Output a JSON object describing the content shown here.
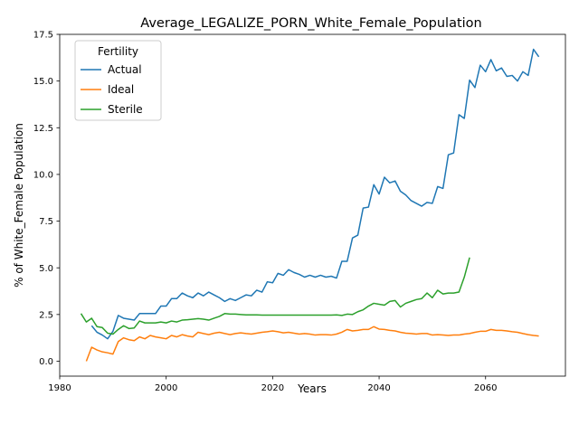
{
  "chart_data": {
    "type": "line",
    "title": "Average_LEGALIZE_PORN_White_Female_Population",
    "xlabel": "Years",
    "ylabel": "% of White_Female Population",
    "xlim": [
      1980,
      2075
    ],
    "ylim": [
      -0.8,
      17.5
    ],
    "xticks": [
      1980,
      2000,
      2020,
      2040,
      2060
    ],
    "yticks": [
      0.0,
      2.5,
      5.0,
      7.5,
      10.0,
      12.5,
      15.0,
      17.5
    ],
    "xtick_labels": [
      "1980",
      "2000",
      "2020",
      "2040",
      "2060"
    ],
    "ytick_labels": [
      "0.0",
      "2.5",
      "5.0",
      "7.5",
      "10.0",
      "12.5",
      "15.0",
      "17.5"
    ],
    "grid": false,
    "legend": {
      "title": "Fertility",
      "placement": "top-left"
    },
    "series": [
      {
        "name": "Actual",
        "color": "#1f77b4",
        "points": [
          [
            1986,
            1.9
          ],
          [
            1987,
            1.55
          ],
          [
            1988,
            1.4
          ],
          [
            1989,
            1.2
          ],
          [
            1990,
            1.6
          ],
          [
            1991,
            2.45
          ],
          [
            1992,
            2.3
          ],
          [
            1993,
            2.25
          ],
          [
            1994,
            2.2
          ],
          [
            1995,
            2.55
          ],
          [
            1996,
            2.55
          ],
          [
            1997,
            2.55
          ],
          [
            1998,
            2.55
          ],
          [
            1999,
            2.95
          ],
          [
            2000,
            2.95
          ],
          [
            2001,
            3.35
          ],
          [
            2002,
            3.35
          ],
          [
            2003,
            3.65
          ],
          [
            2004,
            3.5
          ],
          [
            2005,
            3.4
          ],
          [
            2006,
            3.65
          ],
          [
            2007,
            3.5
          ],
          [
            2008,
            3.7
          ],
          [
            2009,
            3.55
          ],
          [
            2010,
            3.4
          ],
          [
            2011,
            3.2
          ],
          [
            2012,
            3.35
          ],
          [
            2013,
            3.25
          ],
          [
            2014,
            3.4
          ],
          [
            2015,
            3.55
          ],
          [
            2016,
            3.5
          ],
          [
            2017,
            3.8
          ],
          [
            2018,
            3.7
          ],
          [
            2019,
            4.25
          ],
          [
            2020,
            4.2
          ],
          [
            2021,
            4.7
          ],
          [
            2022,
            4.6
          ],
          [
            2023,
            4.9
          ],
          [
            2024,
            4.75
          ],
          [
            2025,
            4.65
          ],
          [
            2026,
            4.5
          ],
          [
            2027,
            4.6
          ],
          [
            2028,
            4.5
          ],
          [
            2029,
            4.6
          ],
          [
            2030,
            4.5
          ],
          [
            2031,
            4.55
          ],
          [
            2032,
            4.45
          ],
          [
            2033,
            5.35
          ],
          [
            2034,
            5.35
          ],
          [
            2035,
            6.6
          ],
          [
            2036,
            6.75
          ],
          [
            2037,
            8.2
          ],
          [
            2038,
            8.25
          ],
          [
            2039,
            9.45
          ],
          [
            2040,
            8.95
          ],
          [
            2041,
            9.85
          ],
          [
            2042,
            9.55
          ],
          [
            2043,
            9.65
          ],
          [
            2044,
            9.1
          ],
          [
            2045,
            8.9
          ],
          [
            2046,
            8.6
          ],
          [
            2047,
            8.45
          ],
          [
            2048,
            8.3
          ],
          [
            2049,
            8.5
          ],
          [
            2050,
            8.45
          ],
          [
            2051,
            9.35
          ],
          [
            2052,
            9.25
          ],
          [
            2053,
            11.05
          ],
          [
            2054,
            11.15
          ],
          [
            2055,
            13.2
          ],
          [
            2056,
            13.0
          ],
          [
            2057,
            15.05
          ],
          [
            2058,
            14.65
          ],
          [
            2059,
            15.85
          ],
          [
            2060,
            15.5
          ],
          [
            2061,
            16.15
          ],
          [
            2062,
            15.55
          ],
          [
            2063,
            15.7
          ],
          [
            2064,
            15.25
          ],
          [
            2065,
            15.3
          ],
          [
            2066,
            15.0
          ],
          [
            2067,
            15.5
          ],
          [
            2068,
            15.3
          ],
          [
            2069,
            16.7
          ],
          [
            2070,
            16.3
          ]
        ]
      },
      {
        "name": "Ideal",
        "color": "#ff7f0e",
        "points": [
          [
            1985,
            0.0
          ],
          [
            1986,
            0.75
          ],
          [
            1987,
            0.6
          ],
          [
            1988,
            0.5
          ],
          [
            1989,
            0.45
          ],
          [
            1990,
            0.38
          ],
          [
            1991,
            1.05
          ],
          [
            1992,
            1.25
          ],
          [
            1993,
            1.15
          ],
          [
            1994,
            1.1
          ],
          [
            1995,
            1.3
          ],
          [
            1996,
            1.2
          ],
          [
            1997,
            1.38
          ],
          [
            1998,
            1.3
          ],
          [
            1999,
            1.25
          ],
          [
            2000,
            1.2
          ],
          [
            2001,
            1.38
          ],
          [
            2002,
            1.3
          ],
          [
            2003,
            1.42
          ],
          [
            2004,
            1.35
          ],
          [
            2005,
            1.3
          ],
          [
            2006,
            1.55
          ],
          [
            2007,
            1.48
          ],
          [
            2008,
            1.42
          ],
          [
            2009,
            1.5
          ],
          [
            2010,
            1.55
          ],
          [
            2011,
            1.48
          ],
          [
            2012,
            1.42
          ],
          [
            2013,
            1.48
          ],
          [
            2014,
            1.52
          ],
          [
            2015,
            1.48
          ],
          [
            2016,
            1.45
          ],
          [
            2017,
            1.5
          ],
          [
            2018,
            1.55
          ],
          [
            2019,
            1.58
          ],
          [
            2020,
            1.62
          ],
          [
            2021,
            1.58
          ],
          [
            2022,
            1.52
          ],
          [
            2023,
            1.55
          ],
          [
            2024,
            1.5
          ],
          [
            2025,
            1.45
          ],
          [
            2026,
            1.48
          ],
          [
            2027,
            1.45
          ],
          [
            2028,
            1.4
          ],
          [
            2029,
            1.42
          ],
          [
            2030,
            1.42
          ],
          [
            2031,
            1.4
          ],
          [
            2032,
            1.45
          ],
          [
            2033,
            1.55
          ],
          [
            2034,
            1.7
          ],
          [
            2035,
            1.62
          ],
          [
            2036,
            1.65
          ],
          [
            2037,
            1.7
          ],
          [
            2038,
            1.7
          ],
          [
            2039,
            1.85
          ],
          [
            2040,
            1.72
          ],
          [
            2041,
            1.7
          ],
          [
            2042,
            1.65
          ],
          [
            2043,
            1.62
          ],
          [
            2044,
            1.55
          ],
          [
            2045,
            1.5
          ],
          [
            2046,
            1.48
          ],
          [
            2047,
            1.45
          ],
          [
            2048,
            1.48
          ],
          [
            2049,
            1.48
          ],
          [
            2050,
            1.4
          ],
          [
            2051,
            1.42
          ],
          [
            2052,
            1.4
          ],
          [
            2053,
            1.38
          ],
          [
            2054,
            1.4
          ],
          [
            2055,
            1.4
          ],
          [
            2056,
            1.45
          ],
          [
            2057,
            1.48
          ],
          [
            2058,
            1.55
          ],
          [
            2059,
            1.6
          ],
          [
            2060,
            1.6
          ],
          [
            2061,
            1.7
          ],
          [
            2062,
            1.65
          ],
          [
            2063,
            1.65
          ],
          [
            2064,
            1.62
          ],
          [
            2065,
            1.58
          ],
          [
            2066,
            1.55
          ],
          [
            2067,
            1.48
          ],
          [
            2068,
            1.42
          ],
          [
            2069,
            1.38
          ],
          [
            2070,
            1.35
          ]
        ]
      },
      {
        "name": "Sterile",
        "color": "#2ca02c",
        "points": [
          [
            1984,
            2.55
          ],
          [
            1985,
            2.1
          ],
          [
            1986,
            2.3
          ],
          [
            1987,
            1.85
          ],
          [
            1988,
            1.8
          ],
          [
            1989,
            1.5
          ],
          [
            1990,
            1.45
          ],
          [
            1991,
            1.7
          ],
          [
            1992,
            1.9
          ],
          [
            1993,
            1.75
          ],
          [
            1994,
            1.78
          ],
          [
            1995,
            2.15
          ],
          [
            1996,
            2.05
          ],
          [
            1997,
            2.05
          ],
          [
            1998,
            2.05
          ],
          [
            1999,
            2.1
          ],
          [
            2000,
            2.05
          ],
          [
            2001,
            2.15
          ],
          [
            2002,
            2.1
          ],
          [
            2003,
            2.2
          ],
          [
            2004,
            2.22
          ],
          [
            2005,
            2.25
          ],
          [
            2006,
            2.28
          ],
          [
            2007,
            2.25
          ],
          [
            2008,
            2.2
          ],
          [
            2009,
            2.3
          ],
          [
            2010,
            2.4
          ],
          [
            2011,
            2.55
          ],
          [
            2012,
            2.52
          ],
          [
            2013,
            2.52
          ],
          [
            2014,
            2.5
          ],
          [
            2015,
            2.48
          ],
          [
            2016,
            2.48
          ],
          [
            2017,
            2.48
          ],
          [
            2018,
            2.47
          ],
          [
            2019,
            2.47
          ],
          [
            2020,
            2.47
          ],
          [
            2021,
            2.47
          ],
          [
            2022,
            2.47
          ],
          [
            2023,
            2.47
          ],
          [
            2024,
            2.47
          ],
          [
            2025,
            2.47
          ],
          [
            2026,
            2.47
          ],
          [
            2027,
            2.47
          ],
          [
            2028,
            2.47
          ],
          [
            2029,
            2.47
          ],
          [
            2030,
            2.47
          ],
          [
            2031,
            2.47
          ],
          [
            2032,
            2.48
          ],
          [
            2033,
            2.45
          ],
          [
            2034,
            2.52
          ],
          [
            2035,
            2.5
          ],
          [
            2036,
            2.65
          ],
          [
            2037,
            2.75
          ],
          [
            2038,
            2.95
          ],
          [
            2039,
            3.1
          ],
          [
            2040,
            3.05
          ],
          [
            2041,
            3.0
          ],
          [
            2042,
            3.2
          ],
          [
            2043,
            3.25
          ],
          [
            2044,
            2.9
          ],
          [
            2045,
            3.1
          ],
          [
            2046,
            3.2
          ],
          [
            2047,
            3.3
          ],
          [
            2048,
            3.35
          ],
          [
            2049,
            3.65
          ],
          [
            2050,
            3.4
          ],
          [
            2051,
            3.8
          ],
          [
            2052,
            3.6
          ],
          [
            2053,
            3.65
          ],
          [
            2054,
            3.65
          ],
          [
            2055,
            3.7
          ],
          [
            2056,
            4.5
          ],
          [
            2057,
            5.55
          ]
        ]
      }
    ]
  }
}
